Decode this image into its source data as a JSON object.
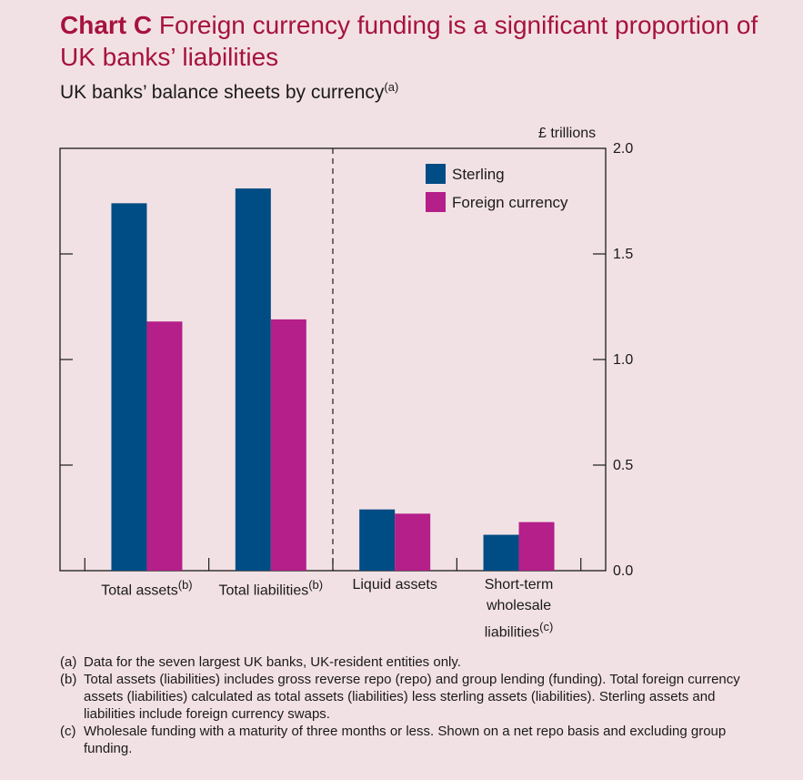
{
  "title": {
    "label": "Chart C",
    "text": "Foreign currency funding is a significant proportion of UK banks’ liabilities"
  },
  "subtitle": {
    "text": "UK banks’ balance sheets by currency",
    "note": "(a)"
  },
  "chart_data": {
    "type": "bar",
    "categories": [
      "Total assets",
      "Total liabilities",
      "Liquid assets",
      "Short-term wholesale liabilities"
    ],
    "category_notes": [
      "(b)",
      "(b)",
      "",
      "(c)"
    ],
    "series": [
      {
        "name": "Sterling",
        "values": [
          1.74,
          1.81,
          0.29,
          0.17
        ],
        "color": "#004c84"
      },
      {
        "name": "Foreign currency",
        "values": [
          1.18,
          1.19,
          0.27,
          0.23
        ],
        "color": "#b41f8a"
      }
    ],
    "ylabel": "£ trillions",
    "ylim": [
      0,
      2.0
    ],
    "yticks": [
      "0.0",
      "0.5",
      "1.0",
      "1.5",
      "2.0"
    ],
    "grid": false,
    "legend_position": "top-right",
    "divider_after_category": 2
  },
  "notes": [
    {
      "mark": "(a)",
      "text": "Data for the seven largest UK banks, UK-resident entities only."
    },
    {
      "mark": "(b)",
      "text": "Total assets (liabilities) includes gross reverse repo (repo) and group lending (funding). Total foreign currency assets (liabilities) calculated as total assets (liabilities) less sterling assets (liabilities). Sterling assets and liabilities include foreign currency swaps."
    },
    {
      "mark": "(c)",
      "text": "Wholesale funding with a maturity of three months or less. Shown on a net repo basis and excluding group funding."
    }
  ]
}
